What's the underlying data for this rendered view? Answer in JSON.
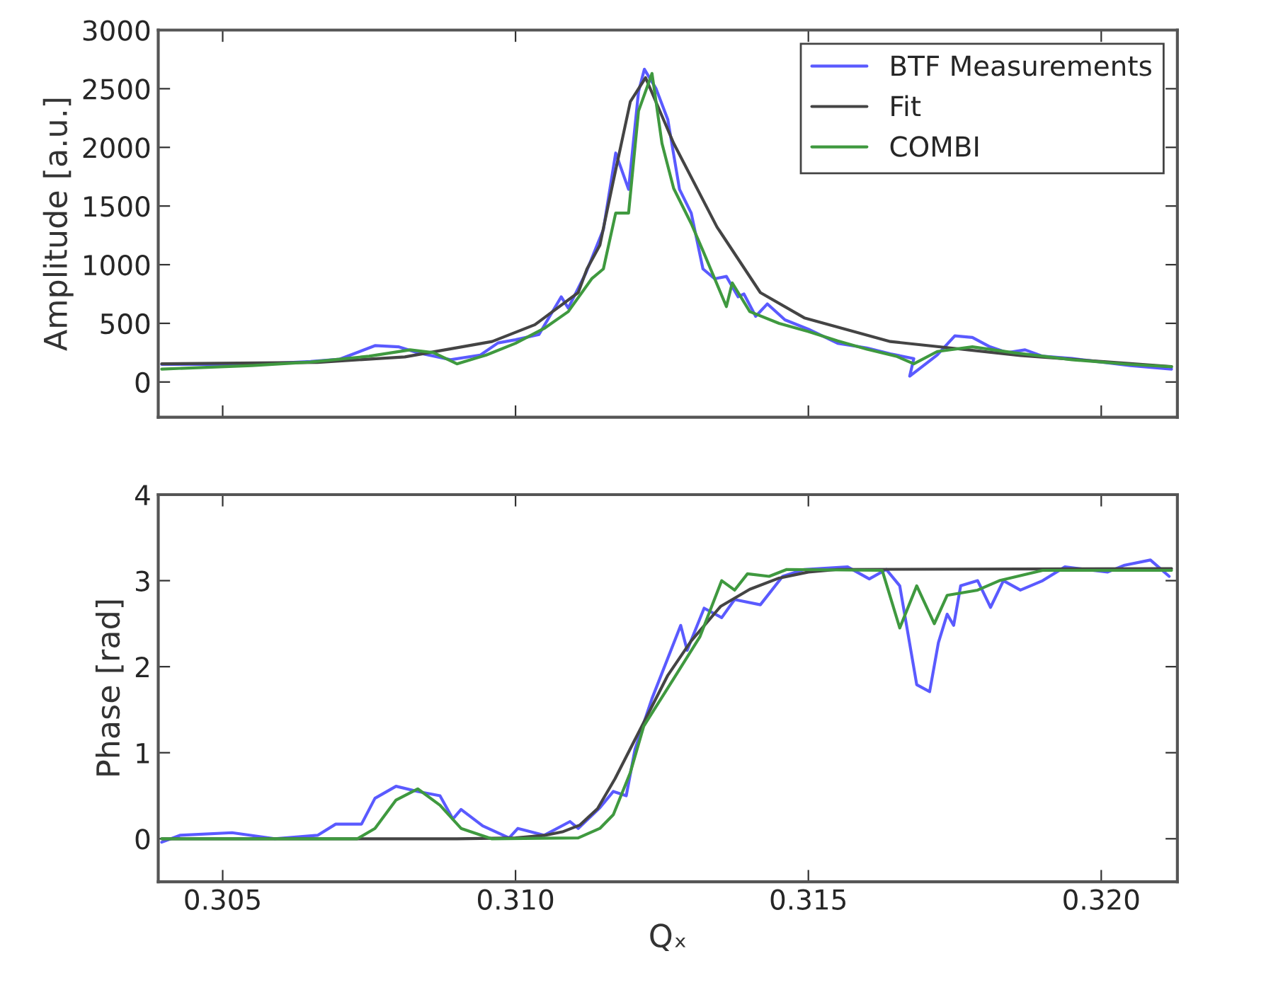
{
  "chart_data": [
    {
      "type": "line",
      "ylabel": "Amplitude [a.u.]",
      "xlim": [
        0.3039,
        0.3213
      ],
      "ylim": [
        -300,
        3000
      ],
      "xticks": [
        {
          "value": 0.305,
          "label": null
        },
        {
          "value": 0.31,
          "label": null
        },
        {
          "value": 0.315,
          "label": null
        },
        {
          "value": 0.32,
          "label": null
        }
      ],
      "yticks": [
        0,
        500,
        1000,
        1500,
        2000,
        2500,
        3000
      ],
      "tick_labels": "y",
      "legend": "top right",
      "grid": false,
      "line_style": "solid",
      "marker": "none",
      "series": [
        {
          "name": "BTF Measurements",
          "color": "#5a5aff",
          "x": [
            0.30396,
            0.3055,
            0.3065,
            0.307,
            0.3076,
            0.308,
            0.30833,
            0.30889,
            0.3094,
            0.3097,
            0.31,
            0.3104,
            0.31078,
            0.3109,
            0.3112,
            0.3115,
            0.31171,
            0.31193,
            0.3121,
            0.3122,
            0.3124,
            0.3126,
            0.3128,
            0.313,
            0.3132,
            0.3134,
            0.3136,
            0.3138,
            0.3139,
            0.3141,
            0.3143,
            0.3146,
            0.315,
            0.3155,
            0.316,
            0.3164,
            0.3168,
            0.31673,
            0.3172,
            0.3175,
            0.3178,
            0.3181,
            0.3184,
            0.3187,
            0.319,
            0.3195,
            0.32,
            0.3205,
            0.3212
          ],
          "values": [
            150,
            150,
            175,
            195,
            310,
            300,
            250,
            190,
            230,
            333,
            360,
            405,
            726,
            630,
            928,
            1300,
            1952,
            1642,
            2475,
            2666,
            2500,
            2237,
            1642,
            1440,
            964,
            880,
            900,
            726,
            750,
            560,
            666,
            530,
            450,
            330,
            290,
            240,
            200,
            50,
            230,
            393,
            380,
            300,
            250,
            274,
            220,
            200,
            170,
            140,
            110
          ]
        },
        {
          "name": "Fit",
          "color": "#444444",
          "x": [
            0.30396,
            0.30662,
            0.30811,
            0.3096,
            0.31033,
            0.31107,
            0.31122,
            0.31144,
            0.31167,
            0.31196,
            0.31222,
            0.3127,
            0.31344,
            0.31418,
            0.31493,
            0.3164,
            0.31862,
            0.3212
          ],
          "values": [
            155,
            167,
            214,
            345,
            488,
            762,
            964,
            1166,
            1714,
            2390,
            2594,
            2035,
            1321,
            762,
            547,
            345,
            226,
            131
          ]
        },
        {
          "name": "COMBI",
          "color": "#3f993f",
          "x": [
            0.30396,
            0.3055,
            0.3065,
            0.3075,
            0.3082,
            0.3086,
            0.309,
            0.3095,
            0.31,
            0.3105,
            0.3109,
            0.3113,
            0.3115,
            0.31171,
            0.31193,
            0.3121,
            0.31233,
            0.3125,
            0.3127,
            0.313,
            0.3132,
            0.3136,
            0.3137,
            0.314,
            0.3145,
            0.315,
            0.3155,
            0.316,
            0.3165,
            0.3168,
            0.3172,
            0.3178,
            0.3185,
            0.3195,
            0.3205,
            0.3212
          ],
          "values": [
            110,
            140,
            170,
            220,
            274,
            250,
            155,
            230,
            330,
            460,
            600,
            880,
            964,
            1440,
            1440,
            2310,
            2630,
            2035,
            1650,
            1350,
            1119,
            643,
            845,
            600,
            500,
            430,
            350,
            280,
            220,
            155,
            260,
            300,
            250,
            190,
            150,
            130
          ]
        }
      ]
    },
    {
      "type": "line",
      "ylabel": "Phase [rad]",
      "xlabel": "Qₓ",
      "xlim": [
        0.3039,
        0.3213
      ],
      "ylim": [
        -0.5,
        4
      ],
      "xticks": [
        {
          "value": 0.305,
          "label": "0.305"
        },
        {
          "value": 0.31,
          "label": "0.310"
        },
        {
          "value": 0.315,
          "label": "0.315"
        },
        {
          "value": 0.32,
          "label": "0.320"
        }
      ],
      "yticks": [
        0,
        1,
        2,
        3,
        4
      ],
      "grid": false,
      "line_style": "solid",
      "marker": "none",
      "series": [
        {
          "color": "#5a5aff",
          "x": [
            0.30396,
            0.30427,
            0.30516,
            0.30589,
            0.30662,
            0.30693,
            0.30737,
            0.3076,
            0.30796,
            0.30833,
            0.30871,
            0.30893,
            0.30907,
            0.30944,
            0.30989,
            0.31004,
            0.31049,
            0.31093,
            0.31107,
            0.31144,
            0.31167,
            0.31189,
            0.31204,
            0.31233,
            0.31282,
            0.31293,
            0.31322,
            0.31352,
            0.31374,
            0.31418,
            0.31456,
            0.31493,
            0.31567,
            0.31604,
            0.31633,
            0.31656,
            0.31685,
            0.31707,
            0.31722,
            0.31737,
            0.31748,
            0.3176,
            0.31789,
            0.31811,
            0.31833,
            0.31862,
            0.319,
            0.31938,
            0.32011,
            0.3204,
            0.32084,
            0.32116
          ],
          "values": [
            -0.04,
            0.04,
            0.07,
            0,
            0.04,
            0.17,
            0.17,
            0.47,
            0.61,
            0.55,
            0.5,
            0.23,
            0.34,
            0.15,
            0.01,
            0.12,
            0.04,
            0.2,
            0.12,
            0.36,
            0.55,
            0.5,
            1.04,
            1.63,
            2.48,
            2.19,
            2.68,
            2.57,
            2.78,
            2.72,
            3.05,
            3.13,
            3.16,
            3.02,
            3.13,
            2.94,
            1.79,
            1.71,
            2.28,
            2.61,
            2.48,
            2.94,
            3.0,
            2.69,
            3.0,
            2.89,
            3.0,
            3.16,
            3.1,
            3.18,
            3.24,
            3.05
          ]
        },
        {
          "color": "#444444",
          "x": [
            0.30396,
            0.309,
            0.31,
            0.3105,
            0.3108,
            0.3111,
            0.3114,
            0.3117,
            0.312,
            0.3123,
            0.3126,
            0.313,
            0.3135,
            0.314,
            0.3145,
            0.315,
            0.3155,
            0.3212
          ],
          "values": [
            0,
            0,
            0.01,
            0.04,
            0.08,
            0.16,
            0.35,
            0.7,
            1.1,
            1.5,
            1.9,
            2.3,
            2.7,
            2.9,
            3.03,
            3.1,
            3.13,
            3.14
          ]
        },
        {
          "color": "#3f993f",
          "x": [
            0.30396,
            0.3073,
            0.3076,
            0.30796,
            0.30833,
            0.30871,
            0.30907,
            0.30959,
            0.31107,
            0.31144,
            0.31167,
            0.31196,
            0.31219,
            0.3127,
            0.31315,
            0.31352,
            0.31374,
            0.31396,
            0.31433,
            0.31463,
            0.31626,
            0.31656,
            0.31685,
            0.31715,
            0.31737,
            0.31789,
            0.31826,
            0.319,
            0.3212
          ],
          "values": [
            0,
            0,
            0.12,
            0.45,
            0.58,
            0.39,
            0.12,
            0,
            0.01,
            0.12,
            0.28,
            0.77,
            1.31,
            1.86,
            2.35,
            3.0,
            2.89,
            3.08,
            3.05,
            3.13,
            3.12,
            2.45,
            2.94,
            2.5,
            2.83,
            2.89,
            3.0,
            3.12,
            3.12
          ]
        }
      ]
    }
  ]
}
